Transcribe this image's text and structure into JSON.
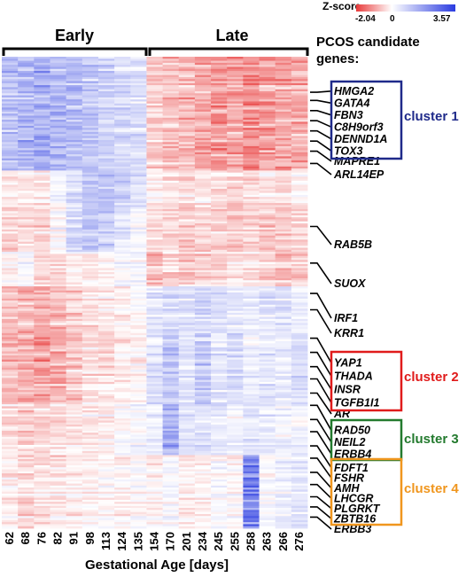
{
  "chart_data": {
    "type": "heatmap",
    "title": "",
    "xlabel": "Gestational Age [days]",
    "ylabel": "",
    "x": [
      "62",
      "68",
      "76",
      "82",
      "91",
      "98",
      "113",
      "124",
      "135",
      "154",
      "170",
      "201",
      "234",
      "245",
      "255",
      "258",
      "263",
      "266",
      "276"
    ],
    "groups": [
      {
        "label": "Early",
        "columns": [
          0,
          8
        ]
      },
      {
        "label": "Late",
        "columns": [
          9,
          18
        ]
      }
    ],
    "colorscale": {
      "title": "Z-score",
      "min": -2.04,
      "mid": 0,
      "max": 3.57,
      "min_label": "-2.04",
      "mid_label": "0",
      "max_label": "3.57",
      "colors": {
        "low": "#e83a3a",
        "mid": "#ffffff",
        "high": "#2a3be0"
      }
    },
    "candidate_header": "PCOS candidate genes:",
    "gene_labels": [
      {
        "name": "HMGA2",
        "row": 17
      },
      {
        "name": "GATA4",
        "row": 21
      },
      {
        "name": "FBN3",
        "row": 26
      },
      {
        "name": "C8H9orf3",
        "row": 31
      },
      {
        "name": "DENND1A",
        "row": 36
      },
      {
        "name": "TOX3",
        "row": 41
      },
      {
        "name": "MAPRE1",
        "row": 46
      },
      {
        "name": "ARL14EP",
        "row": 52
      },
      {
        "name": "RAB5B",
        "row": 83
      },
      {
        "name": "SUOX",
        "row": 101
      },
      {
        "name": "IRF1",
        "row": 116
      },
      {
        "name": "KRR1",
        "row": 124
      },
      {
        "name": "YAP1",
        "row": 138
      },
      {
        "name": "THADA",
        "row": 145
      },
      {
        "name": "INSR",
        "row": 152
      },
      {
        "name": "TGFB1I1",
        "row": 158
      },
      {
        "name": "AR",
        "row": 165
      },
      {
        "name": "RAD50",
        "row": 171
      },
      {
        "name": "NEIL2",
        "row": 178
      },
      {
        "name": "ERBB4",
        "row": 184
      },
      {
        "name": "FDFT1",
        "row": 191
      },
      {
        "name": "FSHR",
        "row": 197
      },
      {
        "name": "AMH",
        "row": 204
      },
      {
        "name": "LHCGR",
        "row": 210
      },
      {
        "name": "PLGRKT",
        "row": 216
      },
      {
        "name": "ZBTB16",
        "row": 221
      },
      {
        "name": "ERBB3",
        "row": 226
      }
    ],
    "clusters": [
      {
        "label": "cluster 1",
        "color": "#1f2a8a",
        "genes": [
          "HMGA2",
          "GATA4",
          "FBN3",
          "C8H9orf3",
          "DENND1A",
          "TOX3"
        ]
      },
      {
        "label": "cluster 2",
        "color": "#e01b1b",
        "genes": [
          "YAP1",
          "THADA",
          "INSR",
          "TGFB1I1"
        ]
      },
      {
        "label": "cluster 3",
        "color": "#237a2e",
        "genes": [
          "RAD50",
          "NEIL2",
          "ERBB4"
        ]
      },
      {
        "label": "cluster 4",
        "color": "#f0961e",
        "genes": [
          "FDFT1",
          "FSHR",
          "AMH",
          "LHCGR",
          "PLGRKT",
          "ZBTB16"
        ]
      }
    ],
    "row_blocks": [
      {
        "rows": [
          0,
          55
        ],
        "values": [
          1.2,
          1.4,
          1.5,
          1.3,
          1.2,
          1.0,
          0.8,
          0.7,
          0.6,
          -0.6,
          -0.7,
          -0.8,
          -0.9,
          -1.1,
          -1.0,
          -1.2,
          -1.1,
          -1.0,
          -0.9
        ]
      },
      {
        "rows": [
          56,
          75
        ],
        "values": [
          -0.3,
          -0.2,
          -0.3,
          0.1,
          0.6,
          0.9,
          1.1,
          0.8,
          0.5,
          -0.2,
          -0.3,
          -0.4,
          -0.3,
          -0.4,
          -0.5,
          -0.4,
          -0.3,
          -0.4,
          -0.2
        ]
      },
      {
        "rows": [
          76,
          95
        ],
        "values": [
          -0.4,
          -0.3,
          -0.4,
          0.1,
          0.9,
          1.1,
          0.9,
          0.4,
          0.2,
          -0.3,
          -0.4,
          -0.5,
          -0.4,
          -0.5,
          -0.5,
          -0.4,
          -0.5,
          -0.5,
          -0.4
        ]
      },
      {
        "rows": [
          96,
          112
        ],
        "values": [
          0.0,
          0.3,
          -0.4,
          -0.3,
          -0.1,
          -0.1,
          0.0,
          0.2,
          0.3,
          -0.6,
          -0.4,
          -0.5,
          -0.4,
          -0.3,
          -0.2,
          -0.3,
          -0.4,
          -0.6,
          -0.5
        ]
      },
      {
        "rows": [
          113,
          135
        ],
        "values": [
          -0.6,
          -0.7,
          -0.8,
          -0.7,
          -0.5,
          -0.3,
          -0.2,
          -0.1,
          0.0,
          0.5,
          0.7,
          0.6,
          0.8,
          0.7,
          0.6,
          0.4,
          0.5,
          0.6,
          0.3
        ]
      },
      {
        "rows": [
          136,
          170
        ],
        "values": [
          -0.7,
          -0.9,
          -1.0,
          -0.9,
          -0.6,
          -0.3,
          -0.3,
          -0.2,
          -0.1,
          0.5,
          1.1,
          0.5,
          1.0,
          0.5,
          0.8,
          0.3,
          0.5,
          0.4,
          0.6
        ]
      },
      {
        "rows": [
          171,
          195
        ],
        "values": [
          -0.3,
          -0.5,
          -0.4,
          -0.3,
          -0.2,
          -0.2,
          -0.1,
          0.1,
          0.2,
          0.4,
          1.6,
          0.5,
          0.6,
          0.4,
          0.3,
          0.5,
          0.4,
          0.2,
          0.3
        ]
      },
      {
        "rows": [
          196,
          231
        ],
        "values": [
          -0.2,
          -0.4,
          -0.3,
          -0.3,
          -0.2,
          -0.1,
          0.0,
          -0.1,
          0.0,
          -0.1,
          0.1,
          -0.2,
          -0.1,
          0.1,
          0.0,
          2.2,
          0.1,
          0.3,
          0.5
        ]
      }
    ],
    "n_rows": 232
  }
}
